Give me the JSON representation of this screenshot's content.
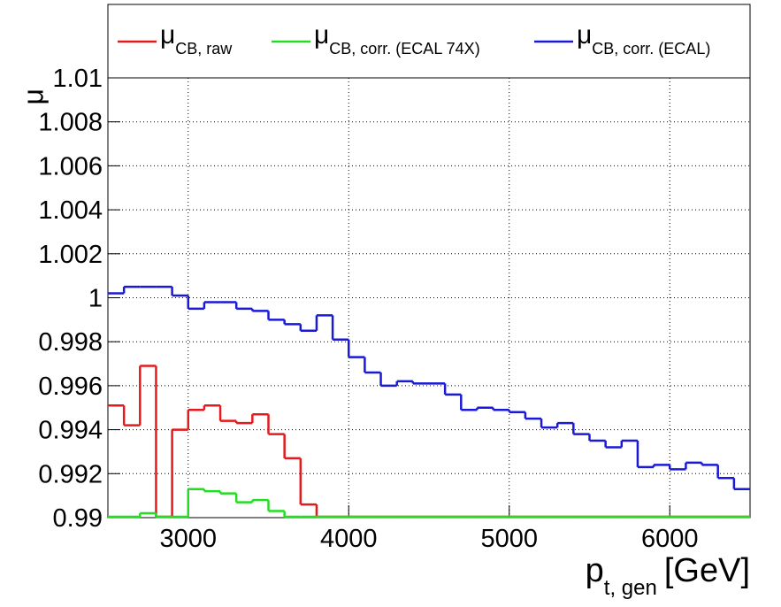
{
  "chart_data": {
    "type": "histogram",
    "xlabel": {
      "symbol": "p",
      "subscript": "t, gen",
      "unit": "[GeV]"
    },
    "ylabel": "μ",
    "bins": [
      2500,
      2600,
      2700,
      2800,
      2900,
      3000,
      3100,
      3200,
      3300,
      3400,
      3500,
      3600,
      3700,
      3800,
      3900,
      4000,
      4100,
      4200,
      4300,
      4400,
      4500,
      4600,
      4700,
      4800,
      4900,
      5000,
      5100,
      5200,
      5300,
      5400,
      5500,
      5600,
      5700,
      5800,
      5900,
      6000,
      6100,
      6200,
      6300,
      6400,
      6500
    ],
    "series": [
      {
        "name": "μ",
        "subscript": "CB, raw",
        "color": "#e41a1c",
        "values": [
          0.9951,
          0.9942,
          0.9969,
          null,
          0.994,
          0.9949,
          0.9951,
          0.9944,
          0.9943,
          0.9947,
          0.9938,
          0.9927,
          0.9906,
          null,
          null,
          null,
          null,
          null,
          null,
          null,
          null,
          null,
          null,
          null,
          null,
          null,
          null,
          null,
          null,
          null,
          null,
          null,
          null,
          null,
          null,
          null,
          null,
          null,
          null,
          null
        ]
      },
      {
        "name": "μ",
        "subscript": "CB, corr. (ECAL 74X)",
        "color": "#22dd22",
        "values": [
          null,
          null,
          0.9902,
          null,
          null,
          0.9913,
          0.9912,
          0.9911,
          0.9907,
          0.9908,
          0.9903,
          null,
          null,
          null,
          null,
          null,
          null,
          null,
          null,
          null,
          null,
          null,
          null,
          null,
          null,
          null,
          null,
          null,
          null,
          null,
          null,
          null,
          null,
          null,
          null,
          null,
          null,
          null,
          null,
          null
        ]
      },
      {
        "name": "μ",
        "subscript": "CB, corr. (ECAL)",
        "color": "#1a1ad6",
        "values": [
          1.0002,
          1.0005,
          1.0005,
          1.0005,
          1.0001,
          0.9995,
          0.9998,
          0.9998,
          0.9995,
          0.9994,
          0.999,
          0.9988,
          0.9985,
          0.9992,
          0.9981,
          0.9973,
          0.9966,
          0.996,
          0.9962,
          0.9961,
          0.9961,
          0.9956,
          0.9949,
          0.995,
          0.9949,
          0.9948,
          0.9945,
          0.9941,
          0.9943,
          0.9938,
          0.9935,
          0.9932,
          0.9935,
          0.9923,
          0.9924,
          0.9922,
          0.9925,
          0.9924,
          0.9918,
          0.9913
        ]
      }
    ],
    "xlim": [
      2500,
      6500
    ],
    "ylim": [
      0.99,
      1.01
    ],
    "xticks": [
      3000,
      4000,
      5000,
      6000
    ],
    "yticks": [
      0.99,
      0.992,
      0.994,
      0.996,
      0.998,
      1,
      1.002,
      1.004,
      1.006,
      1.008,
      1.01
    ],
    "grid": true
  }
}
